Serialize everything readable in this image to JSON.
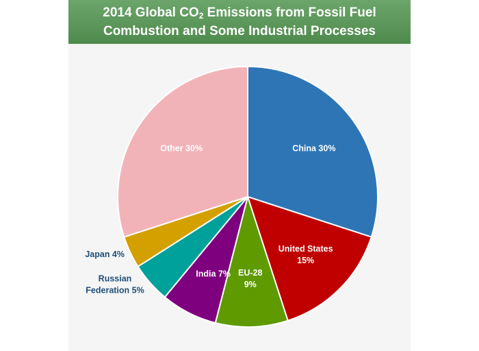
{
  "chart_data": {
    "type": "pie",
    "title_parts": {
      "before_sub": "2014 Global CO",
      "subscript": "2",
      "after_sub": " Emissions from Fossil Fuel",
      "line2": "Combustion and Some Industrial Processes"
    },
    "slices": [
      {
        "label_lines": [
          "China 30%"
        ],
        "value": 30,
        "color": "#2e75b6",
        "label_position": "inside"
      },
      {
        "label_lines": [
          "United States",
          "15%"
        ],
        "value": 15,
        "color": "#c00000",
        "label_position": "inside"
      },
      {
        "label_lines": [
          "EU-28",
          "9%"
        ],
        "value": 9,
        "color": "#5e9a00",
        "label_position": "inside"
      },
      {
        "label_lines": [
          "India 7%"
        ],
        "value": 7,
        "color": "#7f007f",
        "label_position": "inside"
      },
      {
        "label_lines": [
          "Russian",
          "Federation 5%"
        ],
        "value": 5,
        "color": "#00a19a",
        "label_position": "outside"
      },
      {
        "label_lines": [
          "Japan 4%"
        ],
        "value": 4,
        "color": "#d4a000",
        "label_position": "outside"
      },
      {
        "label_lines": [
          "Other 30%"
        ],
        "value": 30,
        "color": "#f2b3b8",
        "label_position": "inside"
      }
    ]
  }
}
